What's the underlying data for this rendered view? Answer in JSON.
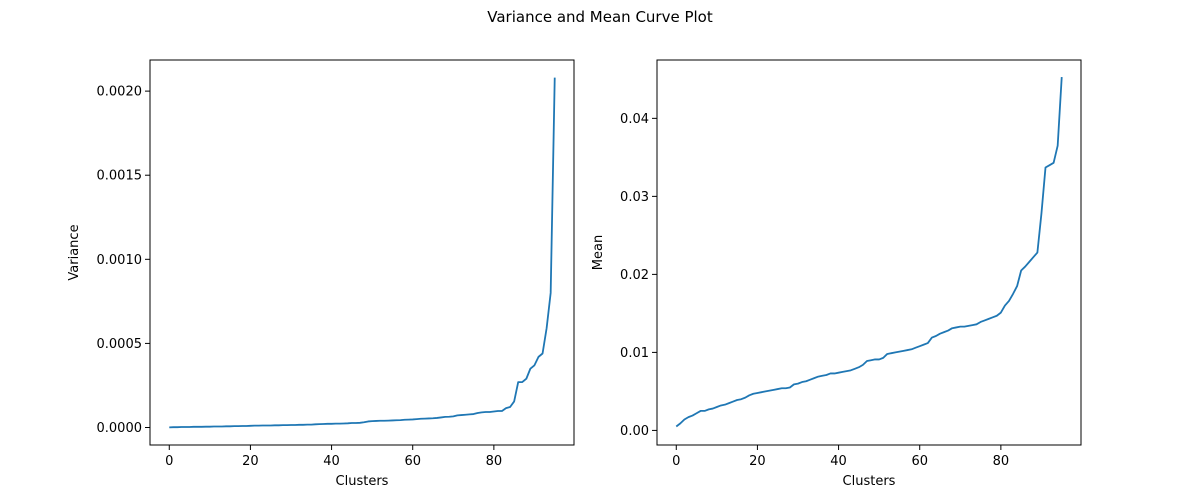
{
  "figure": {
    "suptitle": "Variance and Mean Curve Plot"
  },
  "chart_data": [
    {
      "type": "line",
      "title": "",
      "xlabel": "Clusters",
      "ylabel": "Variance",
      "xlim": [
        -4.75,
        99.75
      ],
      "ylim": [
        -0.000104,
        0.002185
      ],
      "xticks": [
        0,
        20,
        40,
        60,
        80
      ],
      "xtick_labels": [
        "0",
        "20",
        "40",
        "60",
        "80"
      ],
      "yticks": [
        0.0,
        0.0005,
        0.001,
        0.0015,
        0.002
      ],
      "ytick_labels": [
        "0.0000",
        "0.0005",
        "0.0010",
        "0.0015",
        "0.0020"
      ],
      "grid": false,
      "color": "#1f77b4",
      "x": [
        0,
        1,
        2,
        3,
        4,
        5,
        6,
        7,
        8,
        9,
        10,
        11,
        12,
        13,
        14,
        15,
        16,
        17,
        18,
        19,
        20,
        21,
        22,
        23,
        24,
        25,
        26,
        27,
        28,
        29,
        30,
        31,
        32,
        33,
        34,
        35,
        36,
        37,
        38,
        39,
        40,
        41,
        42,
        43,
        44,
        45,
        46,
        47,
        48,
        49,
        50,
        51,
        52,
        53,
        54,
        55,
        56,
        57,
        58,
        59,
        60,
        61,
        62,
        63,
        64,
        65,
        66,
        67,
        68,
        69,
        70,
        71,
        72,
        73,
        74,
        75,
        76,
        77,
        78,
        79,
        80,
        81,
        82,
        83,
        84,
        85,
        86,
        87,
        88,
        89,
        90,
        91,
        92,
        93,
        94,
        95
      ],
      "values": [
        1e-06,
        2e-06,
        2e-06,
        3e-06,
        3e-06,
        3e-06,
        4e-06,
        4e-06,
        4e-06,
        5e-06,
        5e-06,
        6e-06,
        6e-06,
        6e-06,
        7e-06,
        7e-06,
        8e-06,
        8e-06,
        9e-06,
        9e-06,
        1e-05,
        1.1e-05,
        1.1e-05,
        1.2e-05,
        1.2e-05,
        1.2e-05,
        1.3e-05,
        1.3e-05,
        1.4e-05,
        1.4e-05,
        1.5e-05,
        1.5e-05,
        1.6e-05,
        1.6e-05,
        1.7e-05,
        1.7e-05,
        1.9e-05,
        2e-05,
        2.1e-05,
        2.2e-05,
        2.2e-05,
        2.3e-05,
        2.3e-05,
        2.4e-05,
        2.5e-05,
        2.7e-05,
        2.7e-05,
        2.8e-05,
        3.1e-05,
        3.6e-05,
        3.8e-05,
        3.9e-05,
        4e-05,
        4e-05,
        4.1e-05,
        4.2e-05,
        4.3e-05,
        4.4e-05,
        4.6e-05,
        4.7e-05,
        4.8e-05,
        5e-05,
        5.2e-05,
        5.3e-05,
        5.4e-05,
        5.5e-05,
        5.7e-05,
        6e-05,
        6.3e-05,
        6.4e-05,
        6.6e-05,
        7.2e-05,
        7.4e-05,
        7.6e-05,
        7.8e-05,
        8e-05,
        8.6e-05,
        9e-05,
        9.2e-05,
        9.2e-05,
        9.5e-05,
        9.8e-05,
        9.8e-05,
        0.000115,
        0.000122,
        0.000155,
        0.00027,
        0.00027,
        0.00029,
        0.00035,
        0.00037,
        0.00042,
        0.00044,
        0.00059,
        0.0008,
        0.00208
      ]
    },
    {
      "type": "line",
      "title": "",
      "xlabel": "Clusters",
      "ylabel": "Mean",
      "xlim": [
        -4.75,
        99.75
      ],
      "ylim": [
        -0.00187,
        0.04748
      ],
      "xticks": [
        0,
        20,
        40,
        60,
        80
      ],
      "xtick_labels": [
        "0",
        "20",
        "40",
        "60",
        "80"
      ],
      "yticks": [
        0.0,
        0.01,
        0.02,
        0.03,
        0.04
      ],
      "ytick_labels": [
        "0.00",
        "0.01",
        "0.02",
        "0.03",
        "0.04"
      ],
      "grid": false,
      "color": "#1f77b4",
      "x": [
        0,
        1,
        2,
        3,
        4,
        5,
        6,
        7,
        8,
        9,
        10,
        11,
        12,
        13,
        14,
        15,
        16,
        17,
        18,
        19,
        20,
        21,
        22,
        23,
        24,
        25,
        26,
        27,
        28,
        29,
        30,
        31,
        32,
        33,
        34,
        35,
        36,
        37,
        38,
        39,
        40,
        41,
        42,
        43,
        44,
        45,
        46,
        47,
        48,
        49,
        50,
        51,
        52,
        53,
        54,
        55,
        56,
        57,
        58,
        59,
        60,
        61,
        62,
        63,
        64,
        65,
        66,
        67,
        68,
        69,
        70,
        71,
        72,
        73,
        74,
        75,
        76,
        77,
        78,
        79,
        80,
        81,
        82,
        83,
        84,
        85,
        86,
        87,
        88,
        89,
        90,
        91,
        92,
        93,
        94,
        95
      ],
      "values": [
        0.0005,
        0.0009,
        0.0014,
        0.0017,
        0.0019,
        0.0022,
        0.0025,
        0.0025,
        0.0027,
        0.0028,
        0.003,
        0.0032,
        0.0033,
        0.0035,
        0.0037,
        0.0039,
        0.004,
        0.0042,
        0.0045,
        0.0047,
        0.0048,
        0.0049,
        0.005,
        0.0051,
        0.0052,
        0.0053,
        0.0054,
        0.0054,
        0.0055,
        0.0059,
        0.006,
        0.0062,
        0.0063,
        0.0065,
        0.0067,
        0.0069,
        0.007,
        0.0071,
        0.0073,
        0.0073,
        0.0074,
        0.0075,
        0.0076,
        0.0077,
        0.0079,
        0.0081,
        0.0084,
        0.0089,
        0.009,
        0.0091,
        0.0091,
        0.0093,
        0.0098,
        0.0099,
        0.01,
        0.0101,
        0.0102,
        0.0103,
        0.0104,
        0.0106,
        0.0108,
        0.011,
        0.0112,
        0.0119,
        0.0121,
        0.0124,
        0.0126,
        0.0128,
        0.0131,
        0.0132,
        0.0133,
        0.0133,
        0.0134,
        0.0135,
        0.0136,
        0.0139,
        0.0141,
        0.0143,
        0.0145,
        0.0147,
        0.0151,
        0.016,
        0.0166,
        0.0175,
        0.0185,
        0.0205,
        0.021,
        0.0216,
        0.0222,
        0.0228,
        0.0278,
        0.0337,
        0.034,
        0.0343,
        0.0365,
        0.0453
      ]
    }
  ]
}
